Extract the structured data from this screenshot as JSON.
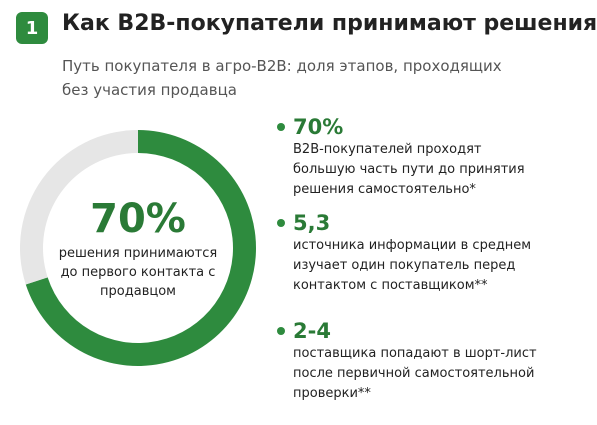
{
  "header": {
    "number": "1",
    "title": "Как B2B-покупатели принимают решения",
    "subtitle": "Путь покупателя в агро-B2B: доля этапов, проходящих без участия продавца"
  },
  "chart_data": {
    "type": "donut",
    "values": [
      70,
      30
    ],
    "value_labels": [
      "70%",
      null
    ],
    "colors": [
      "#2e8b3e",
      "#e6e6e6"
    ],
    "center_caption": "решения принимаются до первого контакта с продавцом"
  },
  "stats": [
    {
      "value": "70%",
      "text": "B2B-покупателей проходят большую часть пути до принятия решения самостоятельно*"
    },
    {
      "value": "5,3",
      "text": "источника информации в среднем изучает один покупатель перед контактом с поставщиком**"
    },
    {
      "value": "2-4",
      "text": "поставщика попадают в шорт-лист после первичной самостоятельной проверки**"
    }
  ]
}
